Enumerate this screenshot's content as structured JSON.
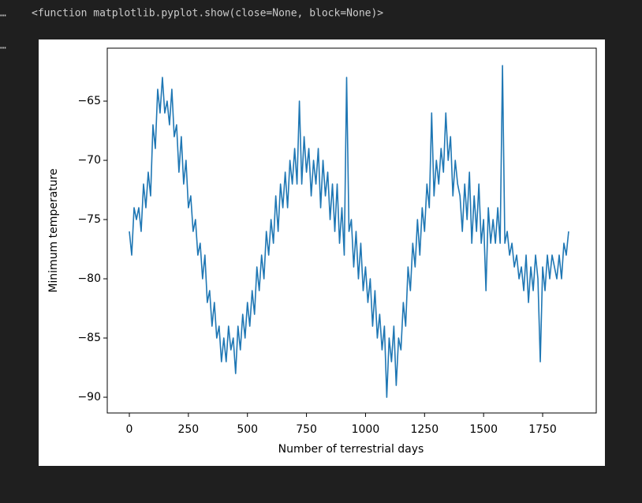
{
  "output": {
    "markers": [
      "…",
      "…"
    ],
    "text": "<function matplotlib.pyplot.show(close=None, block=None)>"
  },
  "chart_data": {
    "type": "line",
    "xlabel": "Number of terrestrial days",
    "ylabel": "Minimum temperature",
    "x": [
      0,
      10,
      20,
      30,
      40,
      50,
      60,
      70,
      80,
      90,
      100,
      110,
      120,
      130,
      140,
      150,
      160,
      170,
      180,
      190,
      200,
      210,
      220,
      230,
      240,
      250,
      260,
      270,
      280,
      290,
      300,
      310,
      320,
      330,
      340,
      350,
      360,
      370,
      380,
      390,
      400,
      410,
      420,
      430,
      440,
      450,
      460,
      470,
      480,
      490,
      500,
      510,
      520,
      530,
      540,
      550,
      560,
      570,
      580,
      590,
      600,
      610,
      620,
      630,
      640,
      650,
      660,
      670,
      680,
      690,
      700,
      710,
      720,
      730,
      740,
      750,
      760,
      770,
      780,
      790,
      800,
      810,
      820,
      830,
      840,
      850,
      860,
      870,
      880,
      890,
      900,
      910,
      920,
      930,
      940,
      950,
      960,
      970,
      980,
      990,
      1000,
      1010,
      1020,
      1030,
      1040,
      1050,
      1060,
      1070,
      1080,
      1090,
      1100,
      1110,
      1120,
      1130,
      1140,
      1150,
      1160,
      1170,
      1180,
      1190,
      1200,
      1210,
      1220,
      1230,
      1240,
      1250,
      1260,
      1270,
      1280,
      1290,
      1300,
      1310,
      1320,
      1330,
      1340,
      1350,
      1360,
      1370,
      1380,
      1390,
      1400,
      1410,
      1420,
      1430,
      1440,
      1450,
      1460,
      1470,
      1480,
      1490,
      1500,
      1510,
      1520,
      1530,
      1540,
      1550,
      1560,
      1570,
      1580,
      1590,
      1600,
      1610,
      1620,
      1630,
      1640,
      1650,
      1660,
      1670,
      1680,
      1690,
      1700,
      1710,
      1720,
      1730,
      1740,
      1750,
      1760,
      1770,
      1780,
      1790,
      1800,
      1810,
      1820,
      1830,
      1840,
      1850,
      1860
    ],
    "series": [
      {
        "color": "#1f77b4",
        "values": [
          -76,
          -78,
          -74,
          -75,
          -74,
          -76,
          -72,
          -74,
          -71,
          -73,
          -67,
          -69,
          -64,
          -66,
          -63,
          -66,
          -65,
          -67,
          -64,
          -68,
          -67,
          -71,
          -68,
          -72,
          -70,
          -74,
          -73,
          -76,
          -75,
          -78,
          -77,
          -80,
          -78,
          -82,
          -81,
          -84,
          -82,
          -85,
          -84,
          -87,
          -85,
          -87,
          -84,
          -86,
          -85,
          -88,
          -84,
          -86,
          -83,
          -85,
          -82,
          -84,
          -81,
          -83,
          -79,
          -81,
          -78,
          -80,
          -76,
          -78,
          -75,
          -77,
          -73,
          -76,
          -72,
          -74,
          -71,
          -74,
          -70,
          -72,
          -69,
          -72,
          -65,
          -72,
          -68,
          -71,
          -69,
          -73,
          -70,
          -72,
          -69,
          -74,
          -70,
          -73,
          -71,
          -75,
          -72,
          -76,
          -72,
          -77,
          -74,
          -78,
          -63,
          -76,
          -75,
          -79,
          -76,
          -80,
          -77,
          -81,
          -79,
          -82,
          -80,
          -84,
          -81,
          -85,
          -83,
          -86,
          -84,
          -90,
          -85,
          -87,
          -84,
          -89,
          -85,
          -86,
          -82,
          -84,
          -79,
          -81,
          -77,
          -79,
          -75,
          -78,
          -74,
          -76,
          -72,
          -74,
          -66,
          -73,
          -70,
          -72,
          -69,
          -71,
          -66,
          -70,
          -68,
          -73,
          -70,
          -72,
          -73,
          -76,
          -72,
          -75,
          -71,
          -77,
          -73,
          -76,
          -72,
          -77,
          -75,
          -81,
          -74,
          -77,
          -75,
          -77,
          -74,
          -77,
          -62,
          -77,
          -76,
          -78,
          -77,
          -79,
          -78,
          -80,
          -79,
          -81,
          -78,
          -82,
          -79,
          -81,
          -78,
          -80,
          -87,
          -79,
          -81,
          -78,
          -80,
          -78,
          -79,
          -80,
          -78,
          -80,
          -77,
          -78,
          -76
        ]
      }
    ],
    "xlim": [
      -93.5,
      1977
    ],
    "ylim": [
      -91.33,
      -60.53
    ],
    "xticks": [
      0,
      250,
      500,
      750,
      1000,
      1250,
      1500,
      1750
    ],
    "yticks": [
      {
        "value": -90,
        "label": "−90"
      },
      {
        "value": -85,
        "label": "−85"
      },
      {
        "value": -80,
        "label": "−80"
      },
      {
        "value": -75,
        "label": "−75"
      },
      {
        "value": -70,
        "label": "−70"
      },
      {
        "value": -65,
        "label": "−65"
      }
    ]
  }
}
